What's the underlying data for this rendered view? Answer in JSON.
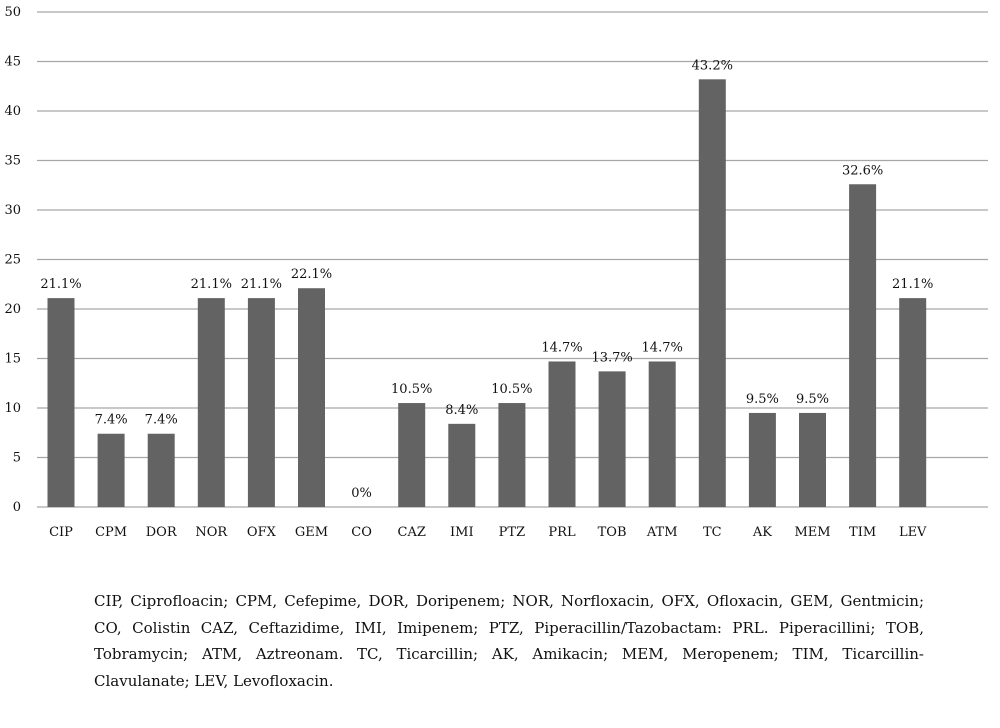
{
  "chart_data": {
    "type": "bar",
    "categories": [
      "CIP",
      "CPM",
      "DOR",
      "NOR",
      "OFX",
      "GEM",
      "CO",
      "CAZ",
      "IMI",
      "PTZ",
      "PRL",
      "TOB",
      "ATM",
      "TC",
      "AK",
      "MEM",
      "TIM",
      "LEV"
    ],
    "values": [
      21.1,
      7.4,
      7.4,
      21.1,
      21.1,
      22.1,
      0,
      10.5,
      8.4,
      10.5,
      14.7,
      13.7,
      14.7,
      43.2,
      9.5,
      9.5,
      32.6,
      21.1
    ],
    "data_labels": [
      "21.1%",
      "7.4%",
      "7.4%",
      "21.1%",
      "21.1%",
      "22.1%",
      "0%",
      "10.5%",
      "8.4%",
      "10.5%",
      "14.7%",
      "13.7%",
      "14.7%",
      "43.2%",
      "9.5%",
      "9.5%",
      "32.6%",
      "21.1%"
    ],
    "ylim": [
      0,
      50
    ],
    "yticks": [
      0,
      5,
      10,
      15,
      20,
      25,
      30,
      35,
      40,
      45,
      50
    ],
    "grid": true,
    "bar_color": "#636363",
    "grid_color": "#a6a6a6",
    "title": "",
    "xlabel": "",
    "ylabel": ""
  },
  "caption": "CIP, Ciprofloacin; CPM, Cefepime, DOR, Doripenem; NOR, Norfloxacin, OFX, Ofloxacin, GEM, Gentmicin; CO, Colistin CAZ, Ceftazidime, IMI, Imipenem; PTZ, Piperacillin/Tazobactam: PRL. Piperacillini; TOB, Tobramycin; ATM, Aztreonam. TC, Ticarcillin; AK, Amikacin; MEM, Meropenem; TIM, Ticarcillin-Clavulanate; LEV, Levofloxacin."
}
